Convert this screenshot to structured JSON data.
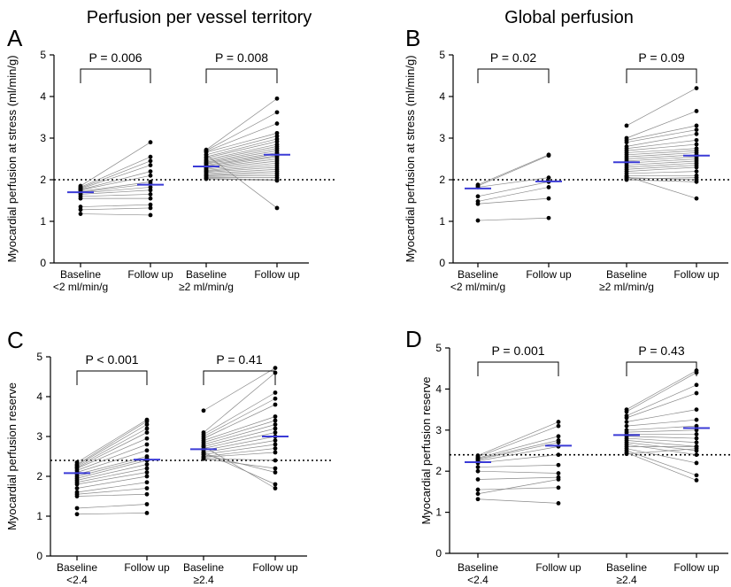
{
  "titles": {
    "left": "Perfusion per vessel territory",
    "right": "Global perfusion"
  },
  "chart_data": [
    {
      "type": "scatter",
      "panel": "A",
      "ylabel": "Myocardial perfusion at stress (ml/min/g)",
      "ylim": [
        0,
        5
      ],
      "yticks": [
        0,
        1,
        2,
        3,
        4,
        5
      ],
      "threshold": 2,
      "xlabels": [
        [
          "Baseline",
          "<2 ml/min/g"
        ],
        [
          "Follow up"
        ],
        [
          "Baseline",
          "≥2 ml/min/g"
        ],
        [
          "Follow up"
        ]
      ],
      "brackets": [
        {
          "groups": [
            0,
            1
          ],
          "label": "P = 0.006"
        },
        {
          "groups": [
            2,
            3
          ],
          "label": "P = 0.008"
        }
      ],
      "medians": [
        1.7,
        1.88,
        2.32,
        2.6
      ],
      "pairs": [
        [
          [
            1.85,
            2.9
          ],
          [
            1.82,
            2.55
          ],
          [
            1.8,
            2.45
          ],
          [
            1.78,
            2.35
          ],
          [
            1.76,
            2.2
          ],
          [
            1.75,
            2.1
          ],
          [
            1.72,
            1.95
          ],
          [
            1.7,
            1.9
          ],
          [
            1.68,
            1.82
          ],
          [
            1.65,
            1.75
          ],
          [
            1.6,
            1.65
          ],
          [
            1.55,
            1.55
          ],
          [
            1.35,
            1.4
          ],
          [
            1.28,
            1.32
          ],
          [
            1.18,
            1.15
          ]
        ],
        [
          [
            2.72,
            3.95
          ],
          [
            2.7,
            3.62
          ],
          [
            2.68,
            3.35
          ],
          [
            2.66,
            3.12
          ],
          [
            2.6,
            3.05
          ],
          [
            2.55,
            2.98
          ],
          [
            2.52,
            2.92
          ],
          [
            2.48,
            2.85
          ],
          [
            2.45,
            2.8
          ],
          [
            2.42,
            2.75
          ],
          [
            2.4,
            2.7
          ],
          [
            2.38,
            2.65
          ],
          [
            2.35,
            2.62
          ],
          [
            2.33,
            2.58
          ],
          [
            2.3,
            2.55
          ],
          [
            2.28,
            2.5
          ],
          [
            2.25,
            2.45
          ],
          [
            2.22,
            2.4
          ],
          [
            2.2,
            2.35
          ],
          [
            2.18,
            2.3
          ],
          [
            2.15,
            2.25
          ],
          [
            2.12,
            2.2
          ],
          [
            2.1,
            2.15
          ],
          [
            2.08,
            2.1
          ],
          [
            2.05,
            2.05
          ],
          [
            2.03,
            2.0
          ],
          [
            2.02,
            1.98
          ],
          [
            2.6,
            1.32
          ]
        ]
      ]
    },
    {
      "type": "scatter",
      "panel": "B",
      "ylabel": "Myocardial perfusion at stress (ml/min/g)",
      "ylim": [
        0,
        5
      ],
      "yticks": [
        0,
        1,
        2,
        3,
        4,
        5
      ],
      "threshold": 2,
      "xlabels": [
        [
          "Baseline",
          "<2 ml/min/g"
        ],
        [
          "Follow up"
        ],
        [
          "Baseline",
          "≥2 ml/min/g"
        ],
        [
          "Follow up"
        ]
      ],
      "brackets": [
        {
          "groups": [
            0,
            1
          ],
          "label": "P = 0.02"
        },
        {
          "groups": [
            2,
            3
          ],
          "label": "P = 0.09"
        }
      ],
      "medians": [
        1.79,
        1.96,
        2.42,
        2.58
      ],
      "pairs": [
        [
          [
            1.88,
            2.6
          ],
          [
            1.85,
            2.58
          ],
          [
            1.82,
            2.05
          ],
          [
            1.6,
            1.95
          ],
          [
            1.48,
            1.82
          ],
          [
            1.42,
            1.55
          ],
          [
            1.02,
            1.08
          ]
        ],
        [
          [
            3.3,
            4.2
          ],
          [
            3.0,
            3.65
          ],
          [
            2.95,
            3.3
          ],
          [
            2.9,
            3.2
          ],
          [
            2.8,
            3.1
          ],
          [
            2.75,
            2.95
          ],
          [
            2.7,
            2.85
          ],
          [
            2.65,
            2.75
          ],
          [
            2.6,
            2.7
          ],
          [
            2.55,
            2.65
          ],
          [
            2.5,
            2.6
          ],
          [
            2.45,
            2.55
          ],
          [
            2.4,
            2.5
          ],
          [
            2.35,
            2.45
          ],
          [
            2.3,
            2.4
          ],
          [
            2.25,
            2.35
          ],
          [
            2.2,
            2.3
          ],
          [
            2.15,
            2.2
          ],
          [
            2.1,
            2.1
          ],
          [
            2.05,
            2.0
          ],
          [
            2.0,
            1.95
          ],
          [
            2.02,
            2.05
          ],
          [
            2.08,
            1.55
          ]
        ]
      ]
    },
    {
      "type": "scatter",
      "panel": "C",
      "ylabel": "Myocardial perfusion reserve",
      "ylim": [
        0,
        5
      ],
      "yticks": [
        0,
        1,
        2,
        3,
        4,
        5
      ],
      "threshold": 2.4,
      "xlabels": [
        [
          "Baseline",
          "<2.4"
        ],
        [
          "Follow up"
        ],
        [
          "Baseline",
          "≥2.4"
        ],
        [
          "Follow up"
        ]
      ],
      "brackets": [
        {
          "groups": [
            0,
            1
          ],
          "label": "P < 0.001"
        },
        {
          "groups": [
            2,
            3
          ],
          "label": "P = 0.41"
        }
      ],
      "medians": [
        2.08,
        2.42,
        2.68,
        3.0
      ],
      "pairs": [
        [
          [
            2.35,
            3.42
          ],
          [
            2.3,
            3.38
          ],
          [
            2.28,
            3.3
          ],
          [
            2.25,
            3.2
          ],
          [
            2.22,
            3.1
          ],
          [
            2.2,
            2.95
          ],
          [
            2.15,
            2.8
          ],
          [
            2.1,
            2.65
          ],
          [
            2.05,
            2.5
          ],
          [
            2.0,
            2.45
          ],
          [
            1.95,
            2.4
          ],
          [
            1.9,
            2.3
          ],
          [
            1.85,
            2.2
          ],
          [
            1.8,
            2.1
          ],
          [
            1.7,
            2.0
          ],
          [
            1.6,
            1.85
          ],
          [
            1.55,
            1.7
          ],
          [
            1.5,
            1.55
          ],
          [
            1.2,
            1.3
          ],
          [
            1.05,
            1.08
          ]
        ],
        [
          [
            3.65,
            4.72
          ],
          [
            3.1,
            4.6
          ],
          [
            3.05,
            4.1
          ],
          [
            3.0,
            3.95
          ],
          [
            2.95,
            3.8
          ],
          [
            2.9,
            3.5
          ],
          [
            2.85,
            3.4
          ],
          [
            2.8,
            3.3
          ],
          [
            2.75,
            3.2
          ],
          [
            2.7,
            3.1
          ],
          [
            2.65,
            3.0
          ],
          [
            2.6,
            2.9
          ],
          [
            2.55,
            2.8
          ],
          [
            2.5,
            2.7
          ],
          [
            2.48,
            2.6
          ],
          [
            2.45,
            2.4
          ],
          [
            2.44,
            2.2
          ],
          [
            2.6,
            1.8
          ],
          [
            2.75,
            1.7
          ],
          [
            2.55,
            2.1
          ]
        ]
      ]
    },
    {
      "type": "scatter",
      "panel": "D",
      "ylabel": "Myocardial perfusion reserve",
      "ylim": [
        0,
        5
      ],
      "yticks": [
        0,
        1,
        2,
        3,
        4,
        5
      ],
      "threshold": 2.4,
      "xlabels": [
        [
          "Baseline",
          "<2.4"
        ],
        [
          "Follow up"
        ],
        [
          "Baseline",
          "≥2.4"
        ],
        [
          "Follow up"
        ]
      ],
      "brackets": [
        {
          "groups": [
            0,
            1
          ],
          "label": "P = 0.001"
        },
        {
          "groups": [
            2,
            3
          ],
          "label": "P = 0.43"
        }
      ],
      "medians": [
        2.22,
        2.62,
        2.88,
        3.05
      ],
      "pairs": [
        [
          [
            2.38,
            3.2
          ],
          [
            2.35,
            3.1
          ],
          [
            2.32,
            2.85
          ],
          [
            2.3,
            2.75
          ],
          [
            2.28,
            2.7
          ],
          [
            2.25,
            2.6
          ],
          [
            2.2,
            2.4
          ],
          [
            2.1,
            2.15
          ],
          [
            2.0,
            1.95
          ],
          [
            1.8,
            1.85
          ],
          [
            1.55,
            1.6
          ],
          [
            1.45,
            1.8
          ],
          [
            1.32,
            1.22
          ]
        ],
        [
          [
            3.5,
            4.45
          ],
          [
            3.45,
            4.4
          ],
          [
            3.35,
            4.1
          ],
          [
            3.3,
            3.9
          ],
          [
            3.2,
            3.5
          ],
          [
            3.1,
            3.25
          ],
          [
            3.0,
            3.1
          ],
          [
            2.95,
            3.0
          ],
          [
            2.9,
            2.9
          ],
          [
            2.85,
            2.8
          ],
          [
            2.8,
            2.7
          ],
          [
            2.75,
            2.6
          ],
          [
            2.7,
            2.5
          ],
          [
            2.65,
            2.4
          ],
          [
            2.6,
            2.6
          ],
          [
            2.55,
            2.2
          ],
          [
            2.5,
            1.9
          ],
          [
            2.45,
            1.78
          ],
          [
            2.42,
            2.55
          ]
        ]
      ]
    }
  ]
}
